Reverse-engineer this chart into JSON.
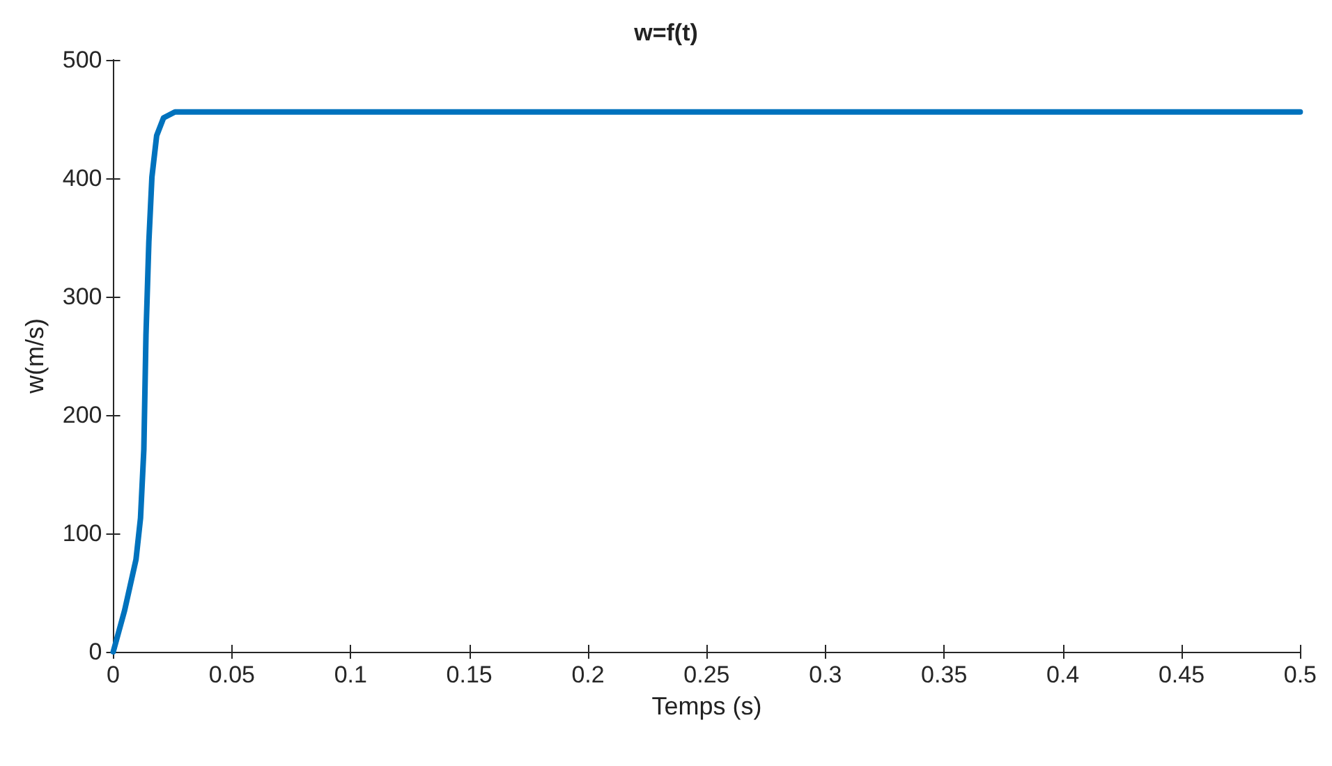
{
  "chart_data": {
    "type": "line",
    "title": "w=f(t)",
    "xlabel": "Temps (s)",
    "ylabel": "w(m/s)",
    "series": [
      {
        "color": "#0072bd",
        "x": [
          0,
          0.0048,
          0.0096,
          0.0115,
          0.0129,
          0.0138,
          0.015,
          0.0163,
          0.0183,
          0.0212,
          0.026,
          0.035,
          0.5
        ],
        "values": [
          0,
          35,
          78,
          113,
          171,
          268,
          346,
          401,
          436,
          451,
          456,
          456,
          456
        ]
      }
    ],
    "xlim": [
      0,
      0.5
    ],
    "xticks": [
      0,
      0.05,
      0.1,
      0.15,
      0.2,
      0.25,
      0.3,
      0.35,
      0.4,
      0.45,
      0.5
    ],
    "ylim": [
      0,
      500
    ],
    "yticks": [
      0,
      100,
      200,
      300,
      400,
      500
    ],
    "grid": false,
    "marker": "none",
    "line_style": "solid"
  }
}
